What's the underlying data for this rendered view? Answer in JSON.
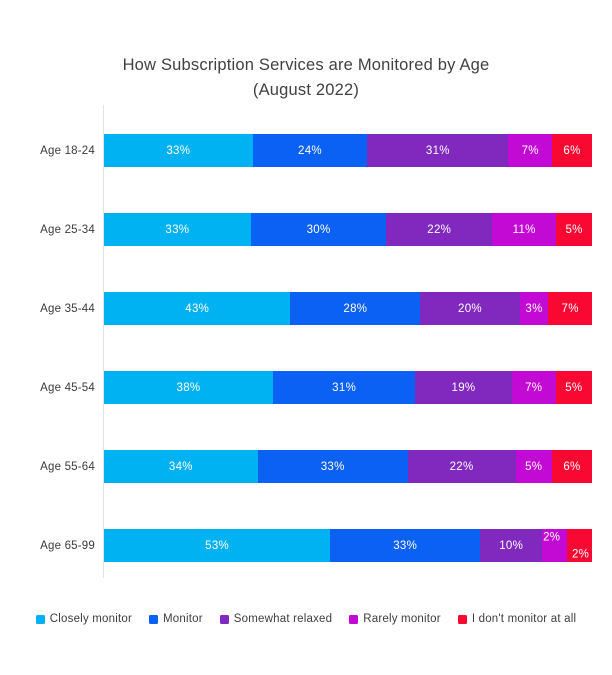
{
  "page": {
    "background": "#ffffff"
  },
  "chart_data": {
    "type": "bar",
    "variant": "horizontal-stacked",
    "title": "How Subscription Services are Monitored by Age",
    "subtitle": "(August 2022)",
    "categories": [
      "Age 18-24",
      "Age 25-34",
      "Age 35-44",
      "Age 45-54",
      "Age 55-64",
      "Age 65-99"
    ],
    "series": [
      {
        "name": "Closely monitor",
        "color": "#00B2F1",
        "values": [
          33,
          33,
          43,
          38,
          34,
          53
        ]
      },
      {
        "name": "Monitor",
        "color": "#0B61F3",
        "values": [
          24,
          30,
          28,
          31,
          33,
          33
        ]
      },
      {
        "name": "Somewhat relaxed",
        "color": "#8128BF",
        "values": [
          31,
          22,
          20,
          19,
          22,
          10
        ]
      },
      {
        "name": "Rarely monitor",
        "color": "#C30AD4",
        "values": [
          7,
          11,
          3,
          7,
          5,
          2
        ]
      },
      {
        "name": "I don't monitor at all",
        "color": "#F90832",
        "values": [
          6,
          5,
          7,
          5,
          6,
          2
        ]
      }
    ],
    "value_suffix": "%",
    "value_label_color": "#ffffff",
    "legend_position": "bottom",
    "axis": {
      "y_axis_line": true,
      "x_tick_labels": false
    },
    "layout_hints": {
      "label_shifts": {
        "5": {
          "3": "up",
          "4": "down"
        }
      }
    }
  }
}
